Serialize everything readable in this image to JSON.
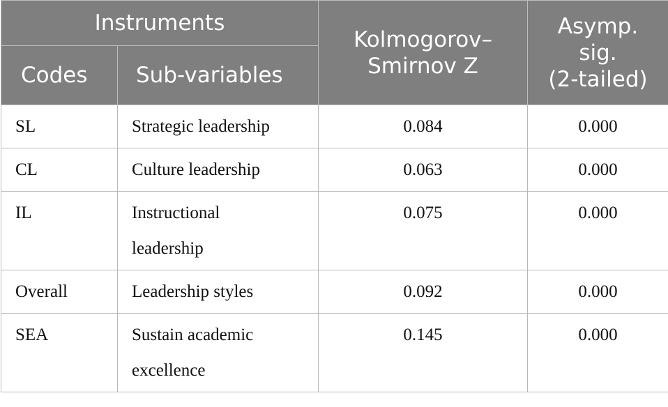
{
  "header": {
    "instruments": "Instruments",
    "codes": "Codes",
    "sub_variables": "Sub-variables",
    "ks_line1": "Kolmogorov–",
    "ks_line2": "Smirnov Z",
    "sig_line1": "Asymp.",
    "sig_line2": "sig.",
    "sig_line3": "(2-tailed)"
  },
  "rows": [
    {
      "code": "SL",
      "sub": "Strategic leadership",
      "ks": "0.084",
      "sig": "0.000"
    },
    {
      "code": "CL",
      "sub": "Culture leadership",
      "ks": "0.063",
      "sig": "0.000"
    },
    {
      "code": "IL",
      "sub_line1": "Instructional",
      "sub_line2": "leadership",
      "ks": "0.075",
      "sig": "0.000"
    },
    {
      "code": "Overall",
      "sub": "Leadership styles",
      "ks": "0.092",
      "sig": "0.000"
    },
    {
      "code": "SEA",
      "sub_line1": "Sustain academic",
      "sub_line2": "excellence",
      "ks": "0.145",
      "sig": "0.000"
    }
  ]
}
